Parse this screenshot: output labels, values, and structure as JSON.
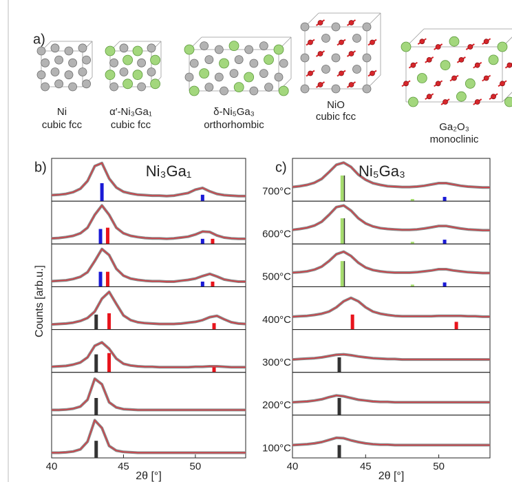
{
  "panel_a": {
    "label": "a)",
    "structures": [
      {
        "name": "Ni",
        "lattice": "cubic fcc"
      },
      {
        "name": "α′-Ni₃Ga₁",
        "lattice": "cubic fcc"
      },
      {
        "name": "δ-Ni₅Ga₃",
        "lattice": "orthorhombic"
      },
      {
        "name": "NiO",
        "lattice": "cubic fcc"
      },
      {
        "name": "Ga₂O₃",
        "lattice": "monoclinic"
      }
    ]
  },
  "chart_data": [
    {
      "type": "stacked-line",
      "panel_label": "b)",
      "title": "Ni₃Ga₁",
      "xlabel": "2θ [°]",
      "ylabel": "Counts [arb.u.]",
      "xlim": [
        40,
        53.5
      ],
      "xticks": [
        40,
        45,
        50
      ],
      "ylim": [
        0,
        1
      ],
      "line_color": "#d9373f",
      "noise_color": "#8a8a8a",
      "x": [
        40,
        40.5,
        41,
        41.5,
        42,
        42.5,
        43,
        43.5,
        44,
        44.5,
        45,
        45.5,
        46,
        46.5,
        47,
        47.5,
        48,
        48.5,
        49,
        49.5,
        50,
        50.5,
        51,
        51.5,
        52,
        52.5,
        53,
        53.5
      ],
      "rows": [
        {
          "values": [
            0.14,
            0.15,
            0.17,
            0.21,
            0.29,
            0.47,
            0.82,
            0.89,
            0.53,
            0.32,
            0.22,
            0.18,
            0.15,
            0.14,
            0.13,
            0.13,
            0.12,
            0.13,
            0.16,
            0.19,
            0.27,
            0.31,
            0.23,
            0.17,
            0.14,
            0.13,
            0.12,
            0.12
          ],
          "references": [
            {
              "x": 43.5,
              "height": 0.42,
              "color": "#1a1ad6"
            },
            {
              "x": 50.5,
              "height": 0.15,
              "color": "#1a1ad6"
            }
          ]
        },
        {
          "values": [
            0.13,
            0.14,
            0.16,
            0.19,
            0.25,
            0.38,
            0.68,
            0.9,
            0.68,
            0.38,
            0.25,
            0.19,
            0.16,
            0.14,
            0.13,
            0.13,
            0.12,
            0.13,
            0.15,
            0.17,
            0.22,
            0.29,
            0.28,
            0.2,
            0.15,
            0.13,
            0.12,
            0.12
          ],
          "references": [
            {
              "x": 43.4,
              "height": 0.35,
              "color": "#1a1ad6"
            },
            {
              "x": 43.9,
              "height": 0.38,
              "color": "#e8141c"
            },
            {
              "x": 50.5,
              "height": 0.12,
              "color": "#1a1ad6"
            },
            {
              "x": 51.2,
              "height": 0.12,
              "color": "#e8141c"
            }
          ]
        },
        {
          "values": [
            0.13,
            0.14,
            0.15,
            0.18,
            0.23,
            0.34,
            0.6,
            0.88,
            0.74,
            0.42,
            0.26,
            0.19,
            0.16,
            0.14,
            0.13,
            0.13,
            0.12,
            0.12,
            0.14,
            0.16,
            0.19,
            0.25,
            0.3,
            0.24,
            0.17,
            0.14,
            0.12,
            0.12
          ],
          "references": [
            {
              "x": 43.4,
              "height": 0.35,
              "color": "#1a1ad6"
            },
            {
              "x": 43.9,
              "height": 0.35,
              "color": "#e8141c"
            },
            {
              "x": 50.5,
              "height": 0.12,
              "color": "#1a1ad6"
            },
            {
              "x": 51.2,
              "height": 0.12,
              "color": "#e8141c"
            }
          ]
        },
        {
          "values": [
            0.12,
            0.13,
            0.14,
            0.16,
            0.2,
            0.27,
            0.42,
            0.72,
            0.88,
            0.6,
            0.33,
            0.22,
            0.17,
            0.15,
            0.14,
            0.13,
            0.13,
            0.13,
            0.14,
            0.16,
            0.18,
            0.22,
            0.29,
            0.32,
            0.24,
            0.17,
            0.14,
            0.13
          ],
          "references": [
            {
              "x": 43.1,
              "height": 0.35,
              "color": "#333333"
            },
            {
              "x": 44.0,
              "height": 0.38,
              "color": "#e8141c"
            },
            {
              "x": 51.3,
              "height": 0.15,
              "color": "#e8141c"
            }
          ]
        },
        {
          "values": [
            0.13,
            0.14,
            0.15,
            0.18,
            0.23,
            0.35,
            0.62,
            0.7,
            0.55,
            0.32,
            0.2,
            0.16,
            0.14,
            0.13,
            0.13,
            0.12,
            0.12,
            0.12,
            0.12,
            0.12,
            0.13,
            0.13,
            0.14,
            0.14,
            0.13,
            0.12,
            0.12,
            0.12
          ],
          "references": [
            {
              "x": 43.1,
              "height": 0.42,
              "color": "#333333"
            },
            {
              "x": 44.0,
              "height": 0.45,
              "color": "#e8141c"
            },
            {
              "x": 51.3,
              "height": 0.12,
              "color": "#e8141c"
            }
          ]
        },
        {
          "values": [
            0.12,
            0.12,
            0.13,
            0.15,
            0.2,
            0.36,
            0.85,
            0.72,
            0.3,
            0.18,
            0.14,
            0.13,
            0.12,
            0.12,
            0.12,
            0.12,
            0.12,
            0.12,
            0.12,
            0.12,
            0.12,
            0.12,
            0.12,
            0.12,
            0.12,
            0.12,
            0.12,
            0.12
          ],
          "references": [
            {
              "x": 43.1,
              "height": 0.4,
              "color": "#333333"
            }
          ]
        },
        {
          "values": [
            0.12,
            0.12,
            0.13,
            0.15,
            0.2,
            0.38,
            0.88,
            0.7,
            0.28,
            0.17,
            0.14,
            0.13,
            0.12,
            0.12,
            0.12,
            0.12,
            0.12,
            0.12,
            0.12,
            0.12,
            0.12,
            0.12,
            0.12,
            0.12,
            0.12,
            0.12,
            0.12,
            0.12
          ],
          "references": [
            {
              "x": 43.1,
              "height": 0.4,
              "color": "#333333"
            }
          ]
        }
      ]
    },
    {
      "type": "stacked-line",
      "panel_label": "c)",
      "title": "Ni₅Ga₃",
      "xlabel": "2θ [°]",
      "xlim": [
        40,
        53.5
      ],
      "xticks": [
        40,
        45,
        50
      ],
      "ylim": [
        0,
        1
      ],
      "line_color": "#d9373f",
      "noise_color": "#8a8a8a",
      "x": [
        40,
        40.5,
        41,
        41.5,
        42,
        42.5,
        43,
        43.5,
        44,
        44.5,
        45,
        45.5,
        46,
        46.5,
        47,
        47.5,
        48,
        48.5,
        49,
        49.5,
        50,
        50.5,
        51,
        51.5,
        52,
        52.5,
        53,
        53.5
      ],
      "rows": [
        {
          "label": "700°C",
          "values": [
            0.33,
            0.35,
            0.38,
            0.43,
            0.52,
            0.68,
            0.85,
            0.9,
            0.8,
            0.62,
            0.5,
            0.42,
            0.38,
            0.35,
            0.34,
            0.33,
            0.33,
            0.34,
            0.36,
            0.39,
            0.42,
            0.42,
            0.39,
            0.36,
            0.34,
            0.33,
            0.32,
            0.32
          ],
          "references": [
            {
              "x": 43.4,
              "height": 0.6,
              "color": "#a6dc6e"
            },
            {
              "x": 43.55,
              "height": 0.6,
              "color": "#333333"
            },
            {
              "x": 48.2,
              "height": 0.05,
              "color": "#a6dc6e"
            },
            {
              "x": 50.4,
              "height": 0.1,
              "color": "#1a1ad6"
            }
          ]
        },
        {
          "label": "600°C",
          "values": [
            0.33,
            0.35,
            0.38,
            0.43,
            0.52,
            0.68,
            0.86,
            0.9,
            0.78,
            0.6,
            0.48,
            0.41,
            0.37,
            0.35,
            0.34,
            0.33,
            0.33,
            0.34,
            0.36,
            0.39,
            0.42,
            0.42,
            0.39,
            0.36,
            0.34,
            0.33,
            0.32,
            0.32
          ],
          "references": [
            {
              "x": 43.4,
              "height": 0.6,
              "color": "#a6dc6e"
            },
            {
              "x": 43.55,
              "height": 0.6,
              "color": "#333333"
            },
            {
              "x": 48.2,
              "height": 0.05,
              "color": "#a6dc6e"
            },
            {
              "x": 50.4,
              "height": 0.1,
              "color": "#1a1ad6"
            }
          ]
        },
        {
          "label": "500°C",
          "values": [
            0.33,
            0.34,
            0.36,
            0.4,
            0.47,
            0.6,
            0.76,
            0.82,
            0.72,
            0.56,
            0.45,
            0.39,
            0.36,
            0.34,
            0.33,
            0.33,
            0.33,
            0.34,
            0.36,
            0.38,
            0.41,
            0.41,
            0.38,
            0.36,
            0.34,
            0.33,
            0.32,
            0.32
          ],
          "references": [
            {
              "x": 43.4,
              "height": 0.6,
              "color": "#a6dc6e"
            },
            {
              "x": 43.55,
              "height": 0.6,
              "color": "#333333"
            },
            {
              "x": 48.2,
              "height": 0.05,
              "color": "#a6dc6e"
            },
            {
              "x": 50.4,
              "height": 0.1,
              "color": "#1a1ad6"
            }
          ]
        },
        {
          "label": "400°C",
          "values": [
            0.3,
            0.31,
            0.32,
            0.34,
            0.37,
            0.42,
            0.52,
            0.66,
            0.74,
            0.66,
            0.52,
            0.42,
            0.37,
            0.34,
            0.32,
            0.31,
            0.31,
            0.31,
            0.31,
            0.31,
            0.32,
            0.32,
            0.32,
            0.32,
            0.31,
            0.31,
            0.3,
            0.3
          ],
          "references": [
            {
              "x": 44.1,
              "height": 0.35,
              "color": "#e8141c"
            },
            {
              "x": 51.2,
              "height": 0.18,
              "color": "#e8141c"
            }
          ]
        },
        {
          "label": "300°C",
          "values": [
            0.3,
            0.31,
            0.32,
            0.33,
            0.35,
            0.38,
            0.41,
            0.42,
            0.4,
            0.37,
            0.35,
            0.33,
            0.32,
            0.31,
            0.31,
            0.3,
            0.3,
            0.3,
            0.3,
            0.3,
            0.3,
            0.3,
            0.3,
            0.3,
            0.3,
            0.3,
            0.3,
            0.3
          ],
          "references": [
            {
              "x": 43.2,
              "height": 0.35,
              "color": "#333333"
            }
          ]
        },
        {
          "label": "200°C",
          "values": [
            0.3,
            0.31,
            0.32,
            0.34,
            0.37,
            0.42,
            0.46,
            0.44,
            0.4,
            0.36,
            0.34,
            0.32,
            0.31,
            0.31,
            0.3,
            0.3,
            0.3,
            0.3,
            0.3,
            0.3,
            0.3,
            0.3,
            0.3,
            0.3,
            0.3,
            0.3,
            0.3,
            0.3
          ],
          "references": [
            {
              "x": 43.2,
              "height": 0.4,
              "color": "#333333"
            }
          ]
        },
        {
          "label": "100°C",
          "values": [
            0.3,
            0.31,
            0.32,
            0.34,
            0.37,
            0.42,
            0.47,
            0.46,
            0.41,
            0.37,
            0.34,
            0.32,
            0.31,
            0.31,
            0.3,
            0.3,
            0.3,
            0.3,
            0.3,
            0.3,
            0.3,
            0.3,
            0.3,
            0.3,
            0.3,
            0.3,
            0.3,
            0.3
          ],
          "references": [
            {
              "x": 43.2,
              "height": 0.3,
              "color": "#333333"
            }
          ]
        }
      ]
    }
  ]
}
